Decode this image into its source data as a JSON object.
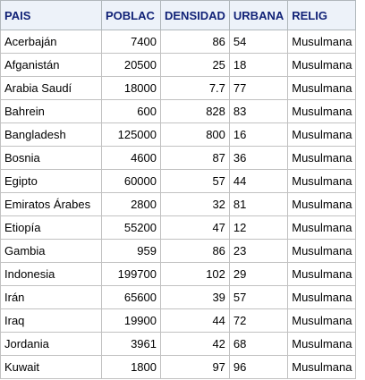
{
  "table": {
    "columns": [
      "PAIS",
      "POBLAC",
      "DENSIDAD",
      "URBANA",
      "RELIG"
    ],
    "rows": [
      [
        "Acerbaján",
        "7400",
        "86",
        "54",
        "Musulmana"
      ],
      [
        "Afganistán",
        "20500",
        "25",
        "18",
        "Musulmana"
      ],
      [
        "Arabia Saudí",
        "18000",
        "7.7",
        "77",
        "Musulmana"
      ],
      [
        "Bahrein",
        "600",
        "828",
        "83",
        "Musulmana"
      ],
      [
        "Bangladesh",
        "125000",
        "800",
        "16",
        "Musulmana"
      ],
      [
        "Bosnia",
        "4600",
        "87",
        "36",
        "Musulmana"
      ],
      [
        "Egipto",
        "60000",
        "57",
        "44",
        "Musulmana"
      ],
      [
        "Emiratos Árabes",
        "2800",
        "32",
        "81",
        "Musulmana"
      ],
      [
        "Etiopía",
        "55200",
        "47",
        "12",
        "Musulmana"
      ],
      [
        "Gambia",
        "959",
        "86",
        "23",
        "Musulmana"
      ],
      [
        "Indonesia",
        "199700",
        "102",
        "29",
        "Musulmana"
      ],
      [
        "Irán",
        "65600",
        "39",
        "57",
        "Musulmana"
      ],
      [
        "Iraq",
        "19900",
        "44",
        "72",
        "Musulmana"
      ],
      [
        "Jordania",
        "3961",
        "42",
        "68",
        "Musulmana"
      ],
      [
        "Kuwait",
        "1800",
        "97",
        "96",
        "Musulmana"
      ]
    ]
  }
}
